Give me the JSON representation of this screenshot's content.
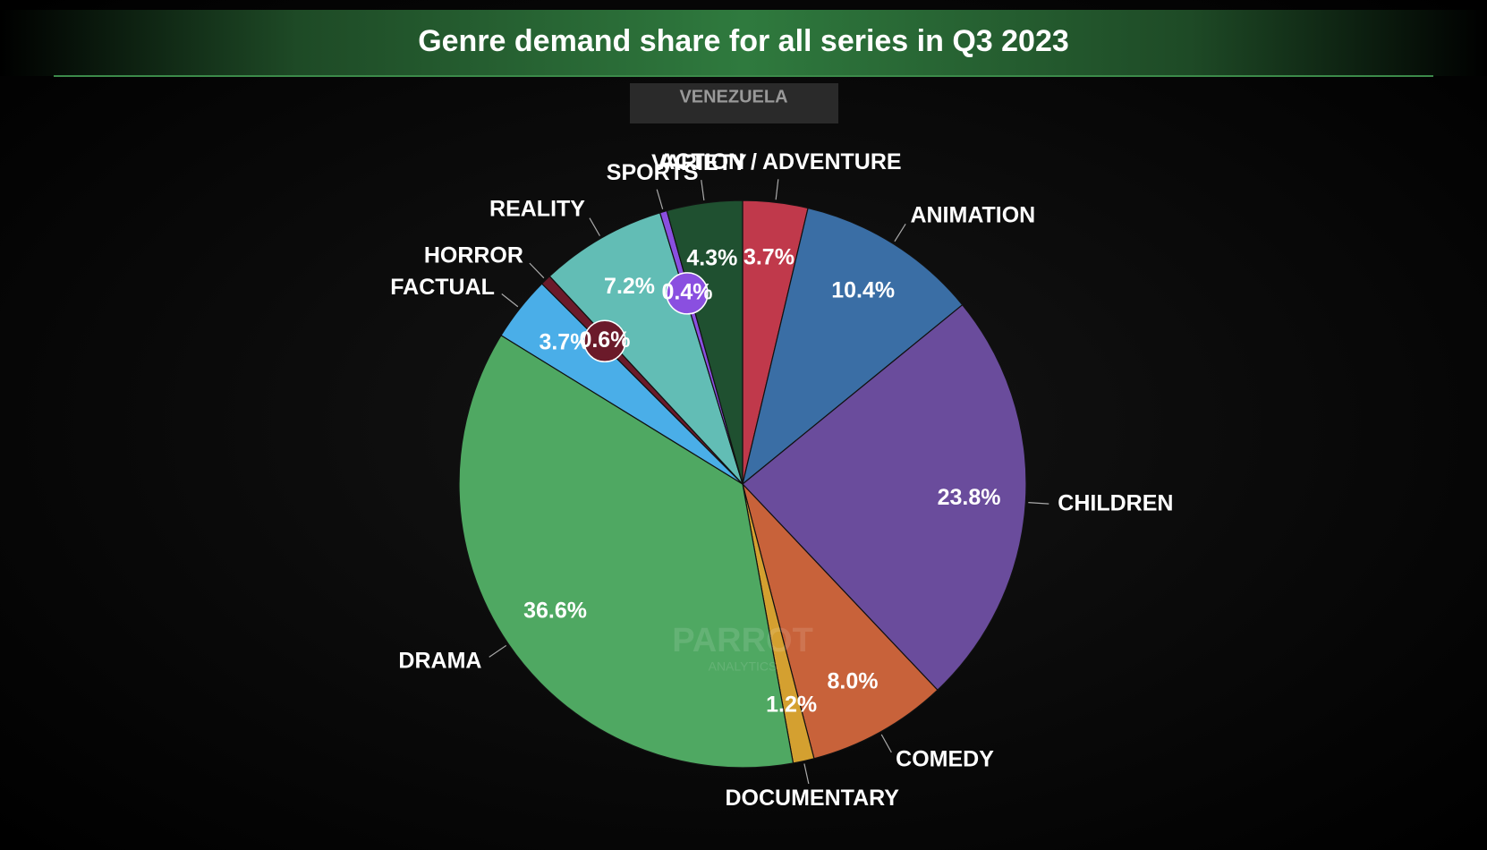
{
  "chart_data": {
    "type": "pie",
    "title": "Genre demand share for all series in Q3 2023",
    "subtitle": "VENEZUELA",
    "watermark": [
      "PARROT",
      "ANALYTICS"
    ],
    "categories": [
      "ACTION / ADVENTURE",
      "ANIMATION",
      "CHILDREN",
      "COMEDY",
      "DOCUMENTARY",
      "DRAMA",
      "FACTUAL",
      "HORROR",
      "REALITY",
      "SPORTS",
      "VARIETY"
    ],
    "values": [
      3.7,
      10.4,
      23.8,
      8.0,
      1.2,
      36.6,
      3.7,
      0.6,
      7.2,
      0.4,
      4.3
    ],
    "value_labels": [
      "3.7%",
      "10.4%",
      "23.8%",
      "8.0%",
      "1.2%",
      "36.6%",
      "3.7%",
      "0.6%",
      "7.2%",
      "0.4%",
      "4.3%"
    ],
    "colors": [
      "#c0394b",
      "#3a6ea5",
      "#6a4c9c",
      "#c8623a",
      "#d4a030",
      "#4fa862",
      "#4aaee8",
      "#6b1a2a",
      "#62bdb5",
      "#8a4fe0",
      "#1f5030"
    ]
  }
}
